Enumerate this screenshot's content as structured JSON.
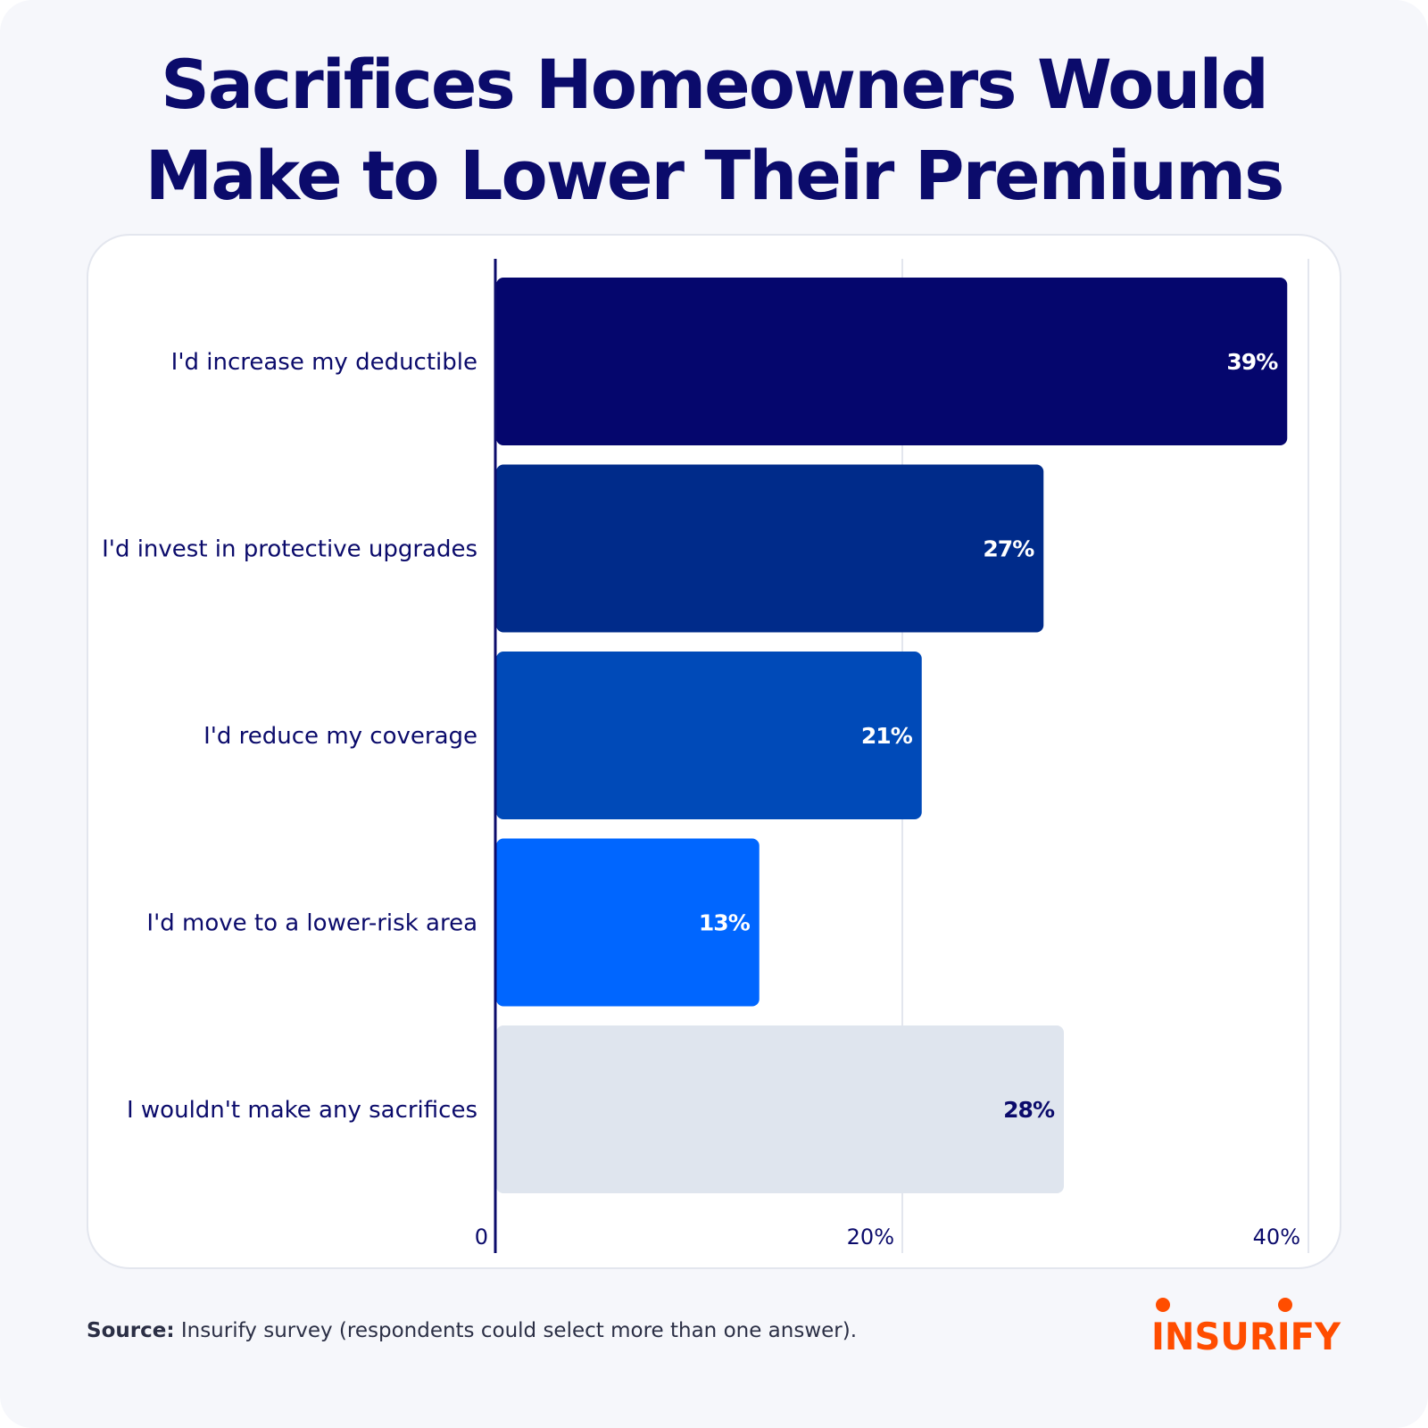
{
  "title": {
    "line1": "Sacrifices Homeowners Would",
    "line2": "Make to Lower Their Premiums"
  },
  "chart_data": {
    "type": "bar",
    "orientation": "horizontal",
    "categories": [
      "I'd increase my deductible",
      "I'd invest in protective upgrades",
      "I'd reduce my coverage",
      "I'd move to a lower-risk area",
      "I wouldn't make any sacrifices"
    ],
    "values": [
      39,
      27,
      21,
      13,
      28
    ],
    "value_labels": [
      "39%",
      "27%",
      "21%",
      "13%",
      "28%"
    ],
    "bar_colors": [
      "#05066d",
      "#002b8a",
      "#004ab8",
      "#0066ff",
      "#dfe5ee"
    ],
    "label_colors": [
      "#ffffff",
      "#ffffff",
      "#ffffff",
      "#ffffff",
      "#0b0b6b"
    ],
    "xlim": [
      0,
      40
    ],
    "x_ticks": [
      0,
      20,
      40
    ],
    "x_tick_labels": [
      "0",
      "20%",
      "40%"
    ],
    "grid": true,
    "legend": "none"
  },
  "source": {
    "label": "Source:",
    "text": "Insurify survey (respondents could select more than one answer)."
  },
  "logo": {
    "text": "INSURIFY",
    "color": "#ff4d00"
  },
  "colors": {
    "title": "#0b0b6b",
    "axis": "#0b0b6b",
    "grid": "#e3e6ee"
  }
}
